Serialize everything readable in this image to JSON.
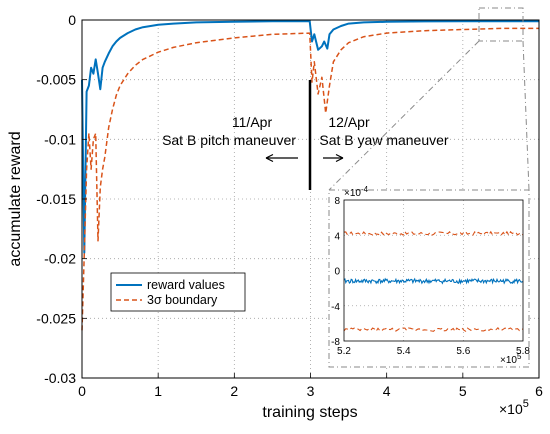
{
  "chart_data": {
    "type": "line",
    "xlabel": "training steps",
    "ylabel": "accumulate reward",
    "xlim": [
      0,
      600000
    ],
    "ylim": [
      -0.03,
      0
    ],
    "x_ticks": [
      "0",
      "1",
      "2",
      "3",
      "4",
      "5",
      "6"
    ],
    "x_exponent": "×10",
    "x_exponent_power": "5",
    "y_ticks": [
      "0",
      "-0.005",
      "-0.01",
      "-0.015",
      "-0.02",
      "-0.025",
      "-0.03"
    ],
    "grid": true,
    "legend_position": "bottom-left",
    "colors": {
      "reward": "#0072bd",
      "boundary": "#d95319"
    },
    "series": [
      {
        "name": "reward values",
        "style": "solid",
        "x": [
          0,
          3000,
          6000,
          9000,
          12000,
          15000,
          18000,
          21000,
          24000,
          27000,
          30000,
          35000,
          40000,
          45000,
          50000,
          60000,
          70000,
          80000,
          90000,
          100000,
          120000,
          150000,
          200000,
          250000,
          299000,
          300000,
          302000,
          305000,
          310000,
          315000,
          318000,
          322000,
          325000,
          330000,
          340000,
          350000,
          370000,
          400000,
          450000,
          500000,
          550000,
          600000
        ],
        "y": [
          -0.005,
          -0.0195,
          -0.006,
          -0.0055,
          -0.004,
          -0.0045,
          -0.0033,
          -0.0045,
          -0.0058,
          -0.004,
          -0.0035,
          -0.0028,
          -0.0022,
          -0.0018,
          -0.0015,
          -0.0011,
          -0.0008,
          -0.0006,
          -0.0005,
          -0.0004,
          -0.0003,
          -0.0002,
          -0.00015,
          -0.0001,
          -0.0001,
          -0.0007,
          -0.0018,
          -0.0012,
          -0.0025,
          -0.0022,
          -0.0018,
          -0.0024,
          -0.0012,
          -0.0008,
          -0.0005,
          -0.0003,
          -0.0002,
          -0.00015,
          -0.00012,
          -0.0001,
          -0.0001,
          -0.0001
        ]
      },
      {
        "name": "3σ boundary",
        "style": "dashed",
        "x": [
          0,
          3000,
          6000,
          9000,
          12000,
          15000,
          18000,
          21000,
          24000,
          27000,
          30000,
          35000,
          40000,
          45000,
          50000,
          60000,
          70000,
          80000,
          90000,
          100000,
          120000,
          150000,
          200000,
          250000,
          299000,
          300000,
          302000,
          305000,
          310000,
          315000,
          320000,
          325000,
          330000,
          340000,
          350000,
          370000,
          400000,
          450000,
          500000,
          550000,
          600000
        ],
        "y": [
          -0.026,
          -0.0195,
          -0.0125,
          -0.0095,
          -0.0125,
          -0.01,
          -0.0095,
          -0.0185,
          -0.014,
          -0.0125,
          -0.0115,
          -0.009,
          -0.0075,
          -0.0063,
          -0.0055,
          -0.0045,
          -0.0038,
          -0.0033,
          -0.003,
          -0.0027,
          -0.0023,
          -0.0019,
          -0.0015,
          -0.0012,
          -0.0011,
          -0.0025,
          -0.0052,
          -0.0035,
          -0.0062,
          -0.0048,
          -0.0078,
          -0.0055,
          -0.0035,
          -0.0025,
          -0.0019,
          -0.0014,
          -0.0011,
          -0.0009,
          -0.0008,
          -0.0007,
          -0.0007
        ]
      }
    ],
    "annotations": {
      "date_left": "11/Apr",
      "text_left": "Sat B pitch maneuver",
      "date_right": "12/Apr",
      "text_right": "Sat B yaw maneuver"
    },
    "inset": {
      "xlim": [
        520000,
        580000
      ],
      "ylim": [
        -0.0008,
        0.0008
      ],
      "x_ticks": [
        "5.2",
        "5.4",
        "5.6",
        "5.8"
      ],
      "y_ticks": [
        "8",
        "4",
        "0",
        "-4",
        "-8"
      ],
      "y_exponent": "×10",
      "y_exponent_power": "-4",
      "x_exponent": "×10",
      "x_exponent_power": "5",
      "reward_level": -0.00012,
      "upper_level": 0.00042,
      "lower_level": -0.00067
    }
  }
}
